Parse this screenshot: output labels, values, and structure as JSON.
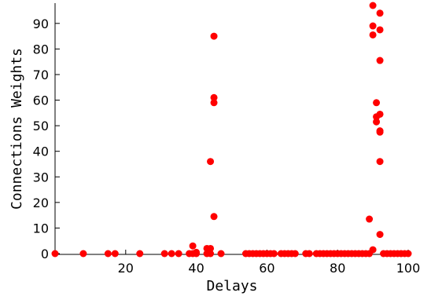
{
  "chart_data": {
    "type": "scatter",
    "xlabel": "Delays",
    "ylabel": "Connections Weights",
    "xlim": [
      0,
      100
    ],
    "ylim": [
      0,
      97
    ],
    "xticks": [
      20,
      40,
      60,
      80,
      100
    ],
    "yticks": [
      0,
      10,
      20,
      30,
      40,
      50,
      60,
      70,
      80,
      90
    ],
    "grid": false,
    "marker_color": "#ff0000",
    "series": [
      {
        "x": [
          0,
          8,
          15,
          17,
          24,
          31,
          33,
          35,
          38,
          39,
          39,
          40,
          40,
          43,
          43,
          44,
          44,
          44,
          45,
          45,
          45,
          45,
          47,
          54,
          55,
          56,
          57,
          58,
          59,
          60,
          61,
          62,
          64,
          65,
          66,
          67,
          68,
          71,
          72,
          74,
          75,
          76,
          77,
          78,
          79,
          80,
          81,
          82,
          83,
          84,
          85,
          86,
          87,
          88,
          89,
          89,
          90,
          90,
          90,
          90,
          91,
          91,
          91,
          92,
          92,
          92,
          92,
          92,
          92,
          92,
          92,
          93,
          94,
          95,
          96,
          97,
          98,
          99,
          100
        ],
        "y": [
          0,
          0,
          0,
          0,
          0,
          0,
          0,
          0,
          0,
          0,
          3,
          0,
          0.5,
          2,
          0,
          36,
          2,
          0,
          85,
          61,
          59,
          14.5,
          0,
          0,
          0,
          0,
          0,
          0,
          0,
          0,
          0,
          0,
          0,
          0,
          0,
          0,
          0,
          0,
          0,
          0,
          0,
          0,
          0,
          0,
          0,
          0,
          0,
          0,
          0,
          0,
          0,
          0,
          0,
          0,
          0,
          13.5,
          1.5,
          97,
          89,
          85.5,
          51.5,
          53.5,
          59,
          54.5,
          48,
          47.5,
          36,
          94,
          87.5,
          75.5,
          7.5,
          0,
          0,
          0,
          0,
          0,
          0,
          0,
          0
        ]
      }
    ]
  }
}
